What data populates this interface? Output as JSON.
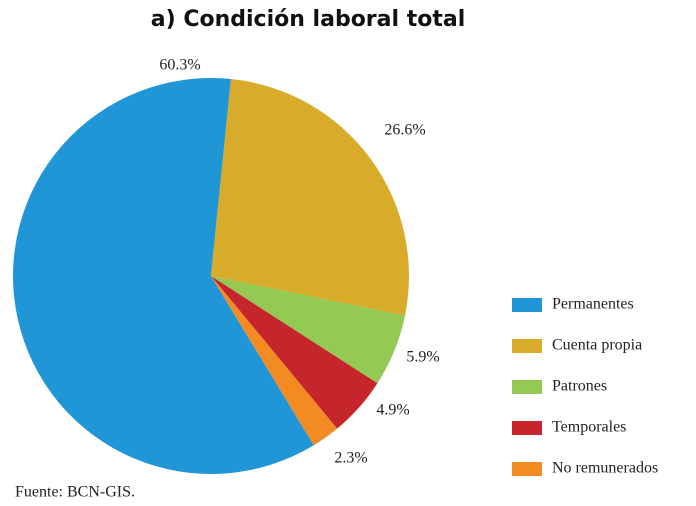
{
  "chart_data": {
    "type": "pie",
    "title": "a) Condición laboral total",
    "categories": [
      "Permanentes",
      "Cuenta propia",
      "Patrones",
      "Temporales",
      "No remunerados"
    ],
    "values": [
      60.3,
      26.6,
      5.9,
      4.9,
      2.3
    ],
    "value_labels": [
      "60.3%",
      "26.6%",
      "5.9%",
      "4.9%",
      "2.3%"
    ],
    "colors": [
      "#2196d6",
      "#d8ab2a",
      "#94c954",
      "#c4262c",
      "#f38a22"
    ],
    "legend": "right",
    "source": "Fuente: BCN-GIS."
  }
}
